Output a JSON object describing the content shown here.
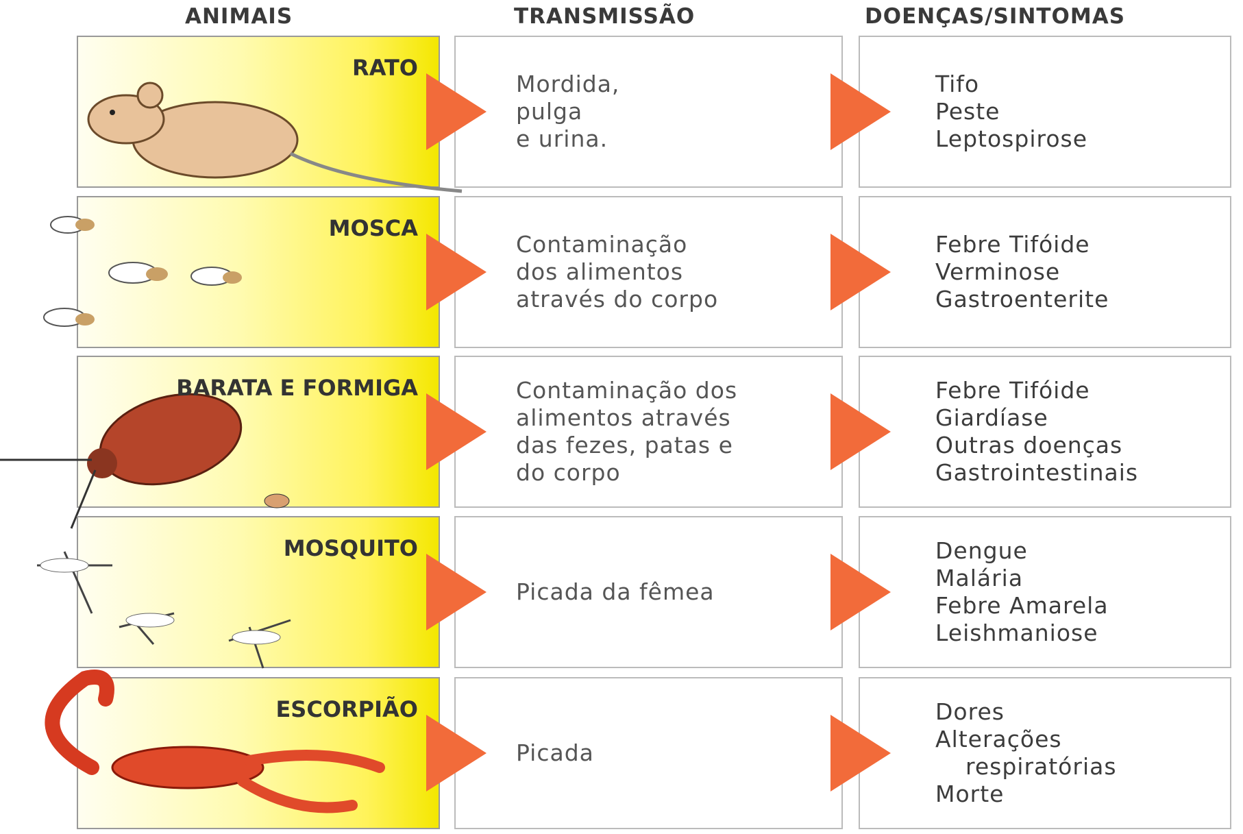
{
  "headers": [
    "ANIMAIS",
    "TRANSMISSÃO",
    "DOENÇAS/SINTOMAS"
  ],
  "rows": [
    {
      "animal": "RATO",
      "transmission": [
        "Mordida,",
        "pulga",
        "e urina."
      ],
      "diseases": [
        "Tifo",
        "Peste",
        "Leptospirose"
      ]
    },
    {
      "animal": "MOSCA",
      "transmission": [
        "Contaminação",
        "dos alimentos",
        "através do corpo"
      ],
      "diseases": [
        "Febre Tifóide",
        "Verminose",
        "Gastroenterite"
      ]
    },
    {
      "animal": "BARATA E FORMIGA",
      "transmission": [
        "Contaminação dos",
        "alimentos através",
        "das fezes, patas e",
        "do corpo"
      ],
      "diseases": [
        "Febre Tifóide",
        "Giardíase",
        "Outras doenças",
        "Gastrointestinais"
      ]
    },
    {
      "animal": "MOSQUITO",
      "transmission": [
        "Picada da fêmea"
      ],
      "diseases": [
        "Dengue",
        "Malária",
        "Febre Amarela",
        "Leishmaniose"
      ]
    },
    {
      "animal": "ESCORPIÃO",
      "transmission": [
        "Picada"
      ],
      "diseases": [
        "Dores",
        "Alterações",
        "respiratórias",
        "Morte"
      ]
    }
  ]
}
